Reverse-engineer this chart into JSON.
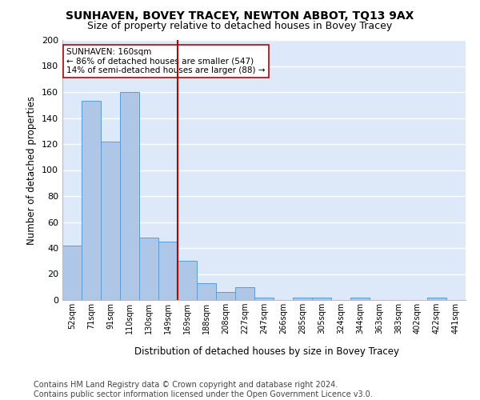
{
  "title": "SUNHAVEN, BOVEY TRACEY, NEWTON ABBOT, TQ13 9AX",
  "subtitle": "Size of property relative to detached houses in Bovey Tracey",
  "xlabel": "Distribution of detached houses by size in Bovey Tracey",
  "ylabel": "Number of detached properties",
  "categories": [
    "52sqm",
    "71sqm",
    "91sqm",
    "110sqm",
    "130sqm",
    "149sqm",
    "169sqm",
    "188sqm",
    "208sqm",
    "227sqm",
    "247sqm",
    "266sqm",
    "285sqm",
    "305sqm",
    "324sqm",
    "344sqm",
    "363sqm",
    "383sqm",
    "402sqm",
    "422sqm",
    "441sqm"
  ],
  "values": [
    42,
    153,
    122,
    160,
    48,
    45,
    30,
    13,
    6,
    10,
    2,
    0,
    2,
    2,
    0,
    2,
    0,
    0,
    0,
    2,
    0
  ],
  "bar_color": "#aec6e8",
  "bar_edge_color": "#5b9bd5",
  "background_color": "#dde9f8",
  "grid_color": "#ffffff",
  "vline_x": 5.5,
  "vline_color": "#bb0000",
  "annotation_text": "SUNHAVEN: 160sqm\n← 86% of detached houses are smaller (547)\n14% of semi-detached houses are larger (88) →",
  "annotation_box_color": "#ffffff",
  "annotation_box_edge": "#bb0000",
  "ylim": [
    0,
    200
  ],
  "yticks": [
    0,
    20,
    40,
    60,
    80,
    100,
    120,
    140,
    160,
    180,
    200
  ],
  "footer": "Contains HM Land Registry data © Crown copyright and database right 2024.\nContains public sector information licensed under the Open Government Licence v3.0.",
  "title_fontsize": 10,
  "subtitle_fontsize": 9,
  "footer_fontsize": 7
}
